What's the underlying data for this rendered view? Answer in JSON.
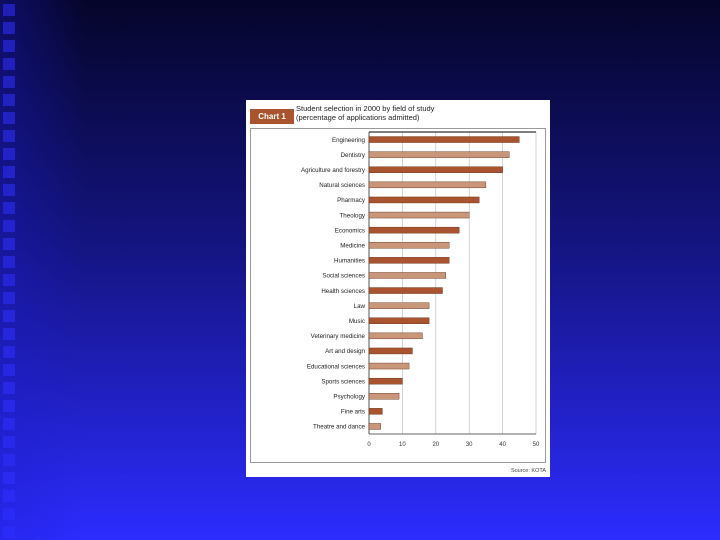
{
  "colors": {
    "background": "#2727f5",
    "background_dark": "#05052a",
    "bar_dark": "#a9542e",
    "bar_light": "#c9967a",
    "badge": "#a9542e"
  },
  "chart_data": {
    "type": "bar",
    "orientation": "horizontal",
    "badge": "Chart 1",
    "title": "Student selection in 2000 by field of study",
    "subtitle": "(percentage of applications admitted)",
    "source": "Source: KOTA",
    "categories": [
      "Engineering",
      "Dentistry",
      "Agriculture and forestry",
      "Natural sciences",
      "Pharmacy",
      "Theology",
      "Economics",
      "Medicine",
      "Humanities",
      "Social sciences",
      "Health sciences",
      "Law",
      "Music",
      "Veterinary medicine",
      "Art and design",
      "Educational sciences",
      "Sports sciences",
      "Psychology",
      "Fine arts",
      "Theatre and dance"
    ],
    "values": [
      45,
      42,
      40,
      35,
      33,
      30,
      27,
      24,
      24,
      23,
      22,
      18,
      18,
      16,
      13,
      12,
      10,
      9,
      4,
      3.5
    ],
    "xlim": [
      0,
      50
    ],
    "xticks": [
      "0",
      "10",
      "20",
      "30",
      "40",
      "50"
    ],
    "grid": true,
    "legend": "none"
  }
}
